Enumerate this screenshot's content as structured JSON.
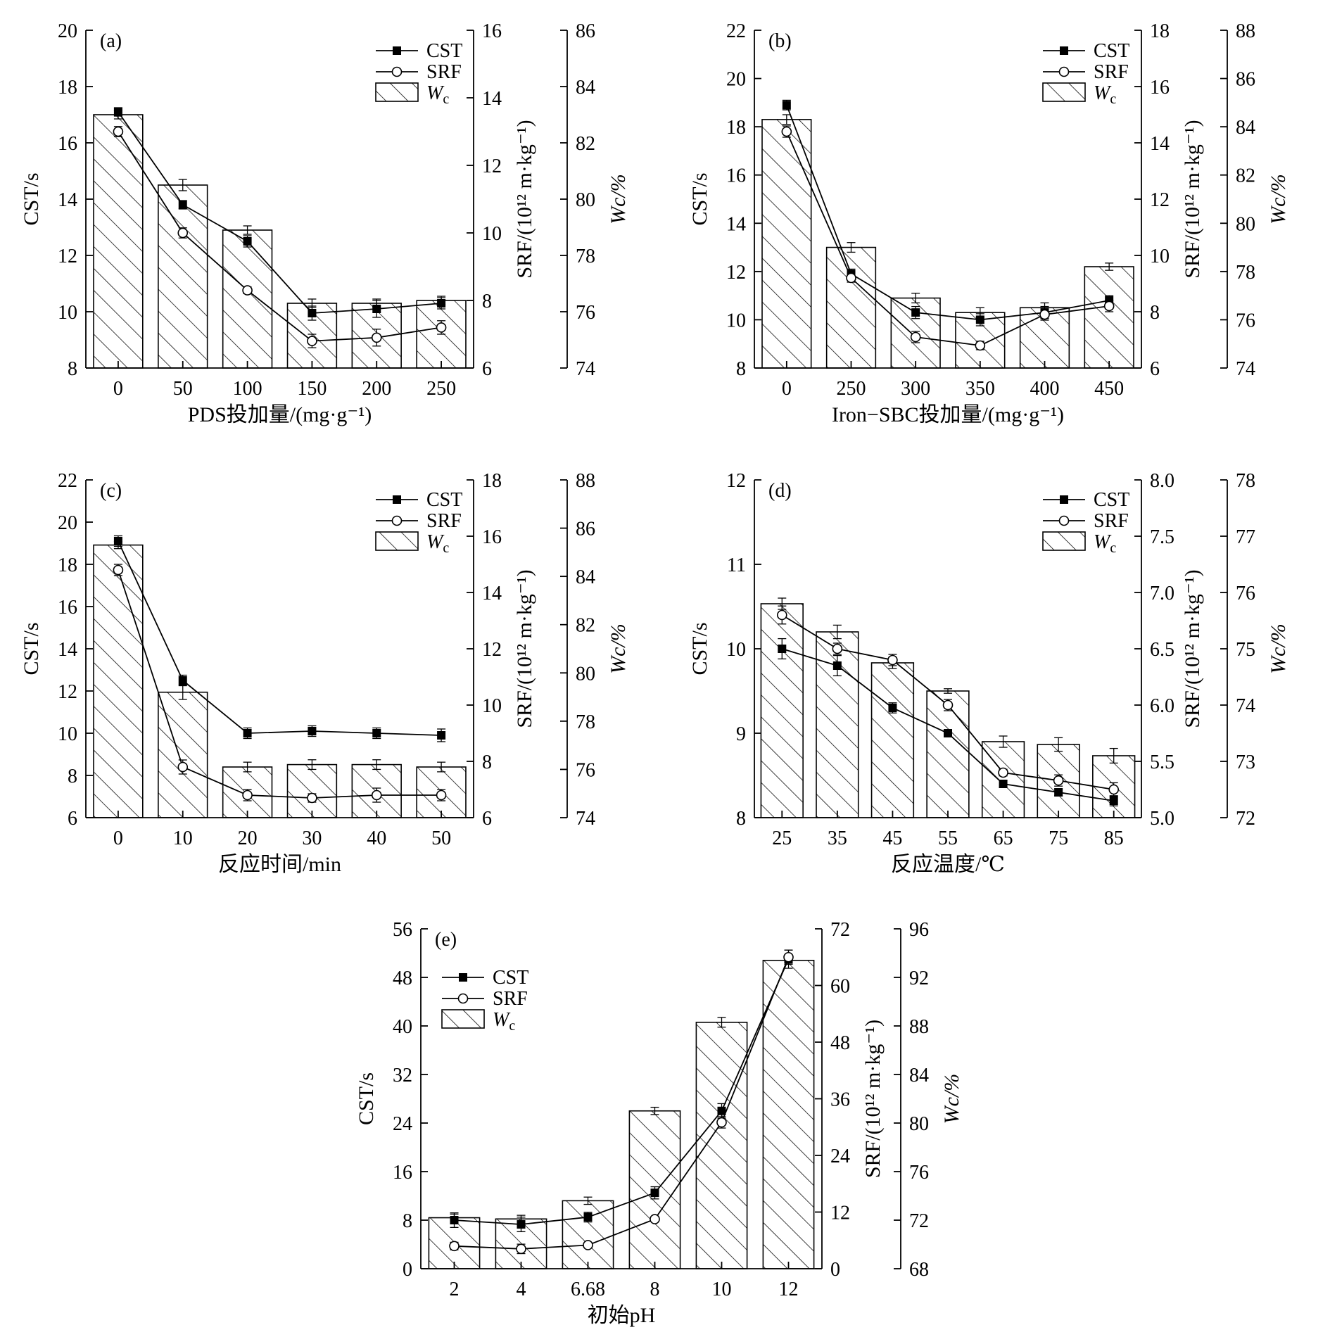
{
  "colors": {
    "ink": "#000000",
    "background": "#ffffff"
  },
  "legend_labels": {
    "cst": "CST",
    "srf": "SRF",
    "wc_main": "W",
    "wc_sub": "c"
  },
  "chart_data": [
    {
      "type": "bar",
      "panel_label": "(a)",
      "title": "",
      "categories": [
        "0",
        "50",
        "100",
        "150",
        "200",
        "250"
      ],
      "xlabel": "PDS投加量/(mg·g⁻¹)",
      "ylabel_left": "CST/s",
      "ylabel_right1": "SRF/(10¹² m·kg⁻¹)",
      "ylabel_right2": "Wc/%",
      "ylim_left": [
        8,
        20
      ],
      "yticks_left": [
        8,
        10,
        12,
        14,
        16,
        18,
        20
      ],
      "ylim_right1": [
        6,
        16
      ],
      "yticks_right1": [
        6,
        8,
        10,
        12,
        14,
        16
      ],
      "ylim_right2": [
        74,
        86
      ],
      "yticks_right2": [
        74,
        76,
        78,
        80,
        82,
        84,
        86
      ],
      "legend_position": "top-right",
      "series": [
        {
          "name": "Wc",
          "kind": "bar",
          "axis": "right2",
          "values": [
            83.0,
            80.5,
            78.9,
            76.3,
            76.3,
            76.4
          ],
          "errors": [
            0.15,
            0.2,
            0.15,
            0.15,
            0.15,
            0.15
          ]
        },
        {
          "name": "CST",
          "kind": "line",
          "marker": "filled-square",
          "axis": "left",
          "values": [
            17.1,
            13.8,
            12.5,
            9.95,
            10.1,
            10.3
          ],
          "errors": [
            0.15,
            0.15,
            0.2,
            0.25,
            0.3,
            0.2
          ]
        },
        {
          "name": "SRF",
          "kind": "line",
          "marker": "open-circle",
          "axis": "right1",
          "values": [
            13.0,
            10.0,
            8.3,
            6.8,
            6.9,
            7.2
          ],
          "errors": [
            0.15,
            0.15,
            0.1,
            0.2,
            0.25,
            0.2
          ]
        }
      ]
    },
    {
      "type": "bar",
      "panel_label": "(b)",
      "title": "",
      "categories": [
        "0",
        "250",
        "300",
        "350",
        "400",
        "450"
      ],
      "xlabel": "Iron−SBC投加量/(mg·g⁻¹)",
      "ylabel_left": "CST/s",
      "ylabel_right1": "SRF/(10¹² m·kg⁻¹)",
      "ylabel_right2": "Wc/%",
      "ylim_left": [
        8,
        22
      ],
      "yticks_left": [
        8,
        10,
        12,
        14,
        16,
        18,
        20,
        22
      ],
      "ylim_right1": [
        6,
        18
      ],
      "yticks_right1": [
        6,
        8,
        10,
        12,
        14,
        16,
        18
      ],
      "ylim_right2": [
        74,
        88
      ],
      "yticks_right2": [
        74,
        76,
        78,
        80,
        82,
        84,
        86,
        88
      ],
      "legend_position": "top-right",
      "series": [
        {
          "name": "Wc",
          "kind": "bar",
          "axis": "right2",
          "values": [
            84.3,
            79.0,
            76.9,
            76.3,
            76.5,
            78.2
          ],
          "errors": [
            0.2,
            0.2,
            0.2,
            0.2,
            0.2,
            0.15
          ]
        },
        {
          "name": "CST",
          "kind": "line",
          "marker": "filled-square",
          "axis": "left",
          "values": [
            18.9,
            11.9,
            10.3,
            10.0,
            10.3,
            10.8
          ],
          "errors": [
            0.2,
            0.2,
            0.25,
            0.25,
            0.25,
            0.2
          ]
        },
        {
          "name": "SRF",
          "kind": "line",
          "marker": "open-circle",
          "axis": "right1",
          "values": [
            14.4,
            9.2,
            7.1,
            6.8,
            7.9,
            8.2
          ],
          "errors": [
            0.2,
            0.15,
            0.2,
            0.15,
            0.2,
            0.2
          ]
        }
      ]
    },
    {
      "type": "bar",
      "panel_label": "(c)",
      "title": "",
      "categories": [
        "0",
        "10",
        "20",
        "30",
        "40",
        "50"
      ],
      "xlabel": "反应时间/min",
      "ylabel_left": "CST/s",
      "ylabel_right1": "SRF/(10¹² m·kg⁻¹)",
      "ylabel_right2": "Wc/%",
      "ylim_left": [
        6,
        22
      ],
      "yticks_left": [
        6,
        8,
        10,
        12,
        14,
        16,
        18,
        20,
        22
      ],
      "ylim_right1": [
        6,
        18
      ],
      "yticks_right1": [
        6,
        8,
        10,
        12,
        14,
        16,
        18
      ],
      "ylim_right2": [
        74,
        88
      ],
      "yticks_right2": [
        74,
        76,
        78,
        80,
        82,
        84,
        86,
        88
      ],
      "legend_position": "top-right",
      "series": [
        {
          "name": "Wc",
          "kind": "bar",
          "axis": "right2",
          "values": [
            85.3,
            79.2,
            76.1,
            76.2,
            76.2,
            76.1
          ],
          "errors": [
            0.15,
            0.3,
            0.2,
            0.2,
            0.2,
            0.2
          ]
        },
        {
          "name": "CST",
          "kind": "line",
          "marker": "filled-square",
          "axis": "left",
          "values": [
            19.1,
            12.5,
            10.0,
            10.1,
            10.0,
            9.9
          ],
          "errors": [
            0.25,
            0.25,
            0.25,
            0.25,
            0.25,
            0.3
          ]
        },
        {
          "name": "SRF",
          "kind": "line",
          "marker": "open-circle",
          "axis": "right1",
          "values": [
            14.8,
            7.8,
            6.8,
            6.7,
            6.8,
            6.8
          ],
          "errors": [
            0.2,
            0.25,
            0.2,
            0.15,
            0.25,
            0.2
          ]
        }
      ]
    },
    {
      "type": "bar",
      "panel_label": "(d)",
      "title": "",
      "categories": [
        "25",
        "35",
        "45",
        "55",
        "65",
        "75",
        "85"
      ],
      "xlabel": "反应温度/℃",
      "ylabel_left": "CST/s",
      "ylabel_right1": "SRF/(10¹² m·kg⁻¹)",
      "ylabel_right2": "Wc/%",
      "ylim_left": [
        8,
        12
      ],
      "yticks_left": [
        8,
        9,
        10,
        11,
        12
      ],
      "yticklabels_left": [
        "8",
        "9",
        "10",
        "11",
        "12"
      ],
      "ylim_right1": [
        5.0,
        8.0
      ],
      "yticks_right1": [
        5.0,
        5.5,
        6.0,
        6.5,
        7.0,
        7.5,
        8.0
      ],
      "yticklabels_right1": [
        "5.0",
        "5.5",
        "6.0",
        "6.5",
        "7.0",
        "7.5",
        "8.0"
      ],
      "ylim_right2": [
        72,
        78
      ],
      "yticks_right2": [
        72,
        73,
        74,
        75,
        76,
        77,
        78
      ],
      "legend_position": "top-right",
      "series": [
        {
          "name": "Wc",
          "kind": "bar",
          "axis": "right2",
          "values": [
            75.8,
            75.3,
            74.75,
            74.25,
            73.35,
            73.3,
            73.1
          ],
          "errors": [
            0.1,
            0.12,
            0.1,
            0.04,
            0.1,
            0.12,
            0.13
          ]
        },
        {
          "name": "CST",
          "kind": "line",
          "marker": "filled-square",
          "axis": "left",
          "values": [
            10.0,
            9.8,
            9.3,
            9.0,
            8.4,
            8.3,
            8.2
          ],
          "errors": [
            0.12,
            0.12,
            0.06,
            0.04,
            0.04,
            0.04,
            0.06
          ]
        },
        {
          "name": "SRF",
          "kind": "line",
          "marker": "open-circle",
          "axis": "right1",
          "values": [
            6.8,
            6.5,
            6.4,
            6.0,
            5.4,
            5.33,
            5.25
          ],
          "errors": [
            0.08,
            0.05,
            0.05,
            0.05,
            0.03,
            0.05,
            0.06
          ]
        }
      ]
    },
    {
      "type": "bar",
      "panel_label": "(e)",
      "title": "",
      "categories": [
        "2",
        "4",
        "6.68",
        "8",
        "10",
        "12"
      ],
      "xlabel": "初始pH",
      "ylabel_left": "CST/s",
      "ylabel_right1": "SRF/(10¹² m·kg⁻¹)",
      "ylabel_right2": "Wc/%",
      "ylim_left": [
        0,
        56
      ],
      "yticks_left": [
        0,
        8,
        16,
        24,
        32,
        40,
        48,
        56
      ],
      "ylim_right1": [
        0,
        72
      ],
      "yticks_right1": [
        0,
        12,
        24,
        36,
        48,
        60,
        72
      ],
      "ylim_right2": [
        68,
        96
      ],
      "yticks_right2": [
        68,
        72,
        76,
        80,
        84,
        88,
        92,
        96
      ],
      "legend_position": "top-left",
      "series": [
        {
          "name": "Wc",
          "kind": "bar",
          "axis": "right2",
          "values": [
            72.2,
            72.1,
            73.6,
            81.0,
            88.3,
            93.4
          ],
          "errors": [
            0.3,
            0.3,
            0.3,
            0.3,
            0.4,
            0.3
          ]
        },
        {
          "name": "CST",
          "kind": "line",
          "marker": "filled-square",
          "axis": "left",
          "values": [
            8.0,
            7.3,
            8.5,
            12.5,
            26.0,
            51.0
          ],
          "errors": [
            1.2,
            1.2,
            0.8,
            1.0,
            1.2,
            1.5
          ]
        },
        {
          "name": "SRF",
          "kind": "line",
          "marker": "open-circle",
          "axis": "right1",
          "values": [
            4.8,
            4.2,
            5.0,
            10.5,
            31.0,
            66.0
          ],
          "errors": [
            0.8,
            1.0,
            0.5,
            0.5,
            1.2,
            1.5
          ]
        }
      ]
    }
  ]
}
